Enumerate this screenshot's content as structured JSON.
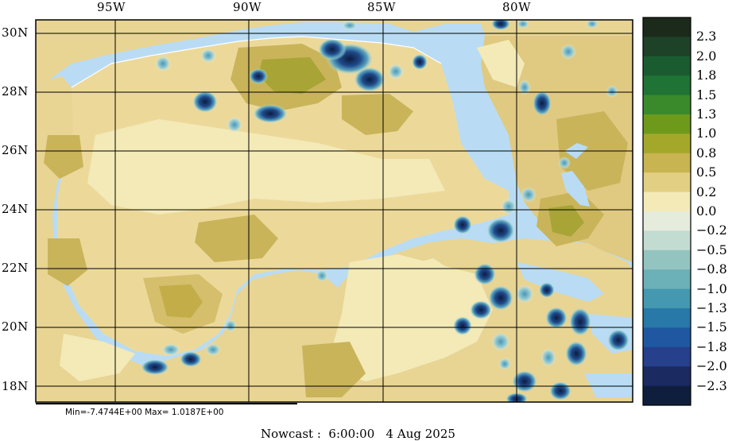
{
  "map": {
    "lon_labels": [
      "95W",
      "90W",
      "85W",
      "80W"
    ],
    "lat_labels": [
      "30N",
      "28N",
      "26N",
      "24N",
      "22N",
      "20N",
      "18N"
    ],
    "stats_text": "Min=-7.4744E+00  Max= 1.0187E+00",
    "footer_text": "Nowcast :  6:00:00   4 Aug 2025"
  },
  "colorbar": {
    "labels": [
      "2.3",
      "2.0",
      "1.8",
      "1.5",
      "1.3",
      "1.0",
      "0.8",
      "0.5",
      "0.2",
      "0.0",
      "−0.2",
      "−0.5",
      "−0.8",
      "−1.0",
      "−1.3",
      "−1.5",
      "−1.8",
      "−2.0",
      "−2.3"
    ],
    "colors": [
      "#1c2a1c",
      "#1e4228",
      "#1a5c30",
      "#1f7334",
      "#3a8a2c",
      "#6e9a1c",
      "#a4a82a",
      "#c8b450",
      "#e3cf83",
      "#f3eab8",
      "#e6ecdc",
      "#c2dcd2",
      "#94c4c0",
      "#6cb0b8",
      "#4498b0",
      "#2878a8",
      "#1f58a0",
      "#26408c",
      "#1c2a62",
      "#101e3e"
    ]
  },
  "colors": {
    "water": "#b9dcf4",
    "land_base": "#e8d493",
    "land_light": "#f3eab8",
    "land_mid": "#d9c275",
    "land_dark": "#c2b04a",
    "land_green": "#a4a833",
    "blob_dark": "#14284e",
    "blob_mid": "#2c72a8",
    "blob_light": "#9ccfd2",
    "grid": "#000000"
  }
}
